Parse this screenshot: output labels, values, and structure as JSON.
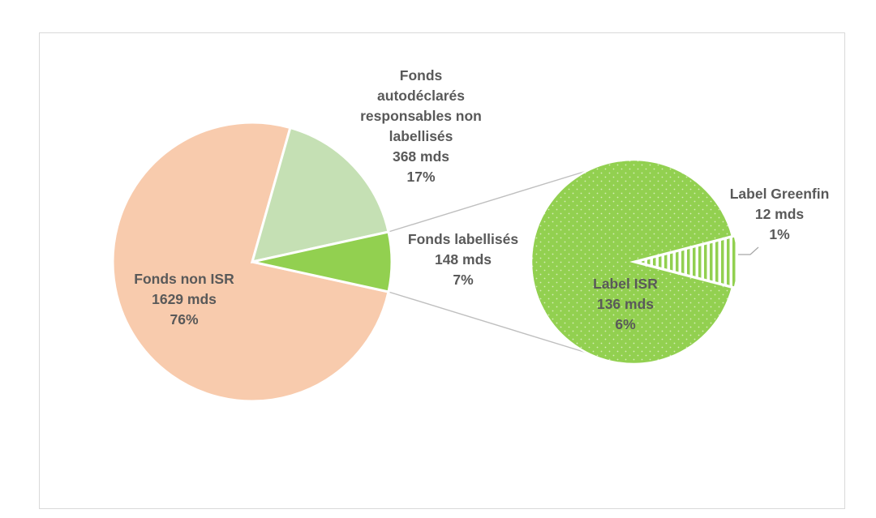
{
  "chart_data": {
    "type": "pie",
    "title": "",
    "main_pie": {
      "slices": [
        {
          "label_lines": [
            "Fonds non ISR",
            "1629 mds",
            "76%"
          ],
          "name": "Fonds non ISR",
          "value": 1629,
          "percent": 76,
          "color": "#f8cbad"
        },
        {
          "label_lines": [
            "Fonds",
            "autodéclarés",
            "responsables non",
            "labellisés",
            "368 mds",
            "17%"
          ],
          "name": "Fonds autodéclarés responsables non labellisés",
          "value": 368,
          "percent": 17,
          "color": "#c5e0b4"
        },
        {
          "label_lines": [
            "Fonds labellisés",
            "148 mds",
            "7%"
          ],
          "name": "Fonds labellisés",
          "value": 148,
          "percent": 7,
          "color": "#92d050"
        }
      ]
    },
    "sub_pie": {
      "parent": "Fonds labellisés",
      "slices": [
        {
          "label_lines": [
            "Label ISR",
            "136 mds",
            "6%"
          ],
          "name": "Label ISR",
          "value": 136,
          "percent": 6,
          "color": "#92d050",
          "pattern": "dots"
        },
        {
          "label_lines": [
            "Label Greenfin",
            "12 mds",
            "1%"
          ],
          "name": "Label Greenfin",
          "value": 12,
          "percent": 1,
          "color": "#92d050",
          "pattern": "vertical-stripes"
        }
      ]
    }
  }
}
